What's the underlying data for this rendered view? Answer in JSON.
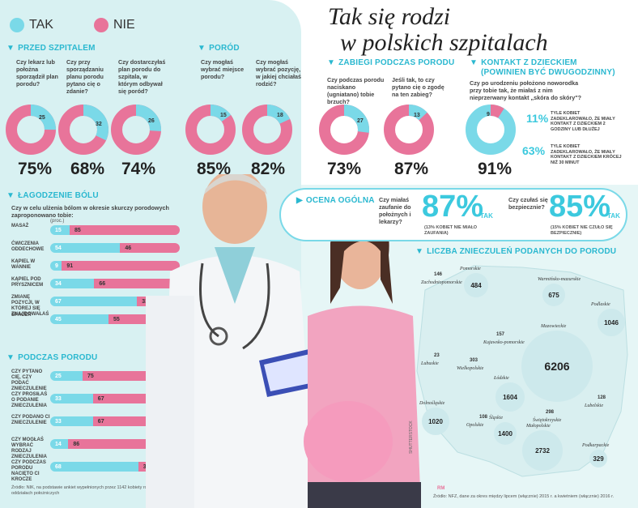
{
  "legend": {
    "tak": "TAK",
    "nie": "NIE",
    "tak_color": "#7ad9e8",
    "nie_color": "#e8749a"
  },
  "title": {
    "line1": "Tak się rodzi",
    "line2": "w polskich szpitalach"
  },
  "przed_szpitalem": {
    "heading": "PRZED SZPITALEM",
    "items": [
      {
        "q": "Czy lekarz lub położna sporządził plan porodu?",
        "tak": "25",
        "pct": "75%"
      },
      {
        "q": "Czy przy sporządzaniu planu porodu pytano cię o zdanie?",
        "tak": "32",
        "pct": "68%"
      },
      {
        "q": "Czy dostarczyłaś plan porodu do szpitala, w którym odbywał się poród?",
        "tak": "26",
        "pct": "74%"
      }
    ]
  },
  "porod": {
    "heading": "PORÓD",
    "items": [
      {
        "q": "Czy mogłaś wybrać miejsce porodu?",
        "tak": "15",
        "pct": "85%"
      },
      {
        "q": "Czy mogłaś wybrać pozycję, w jakiej chciałaś rodzić?",
        "tak": "18",
        "pct": "82%"
      }
    ]
  },
  "zabiegi": {
    "heading": "ZABIEGI PODCZAS PORODU",
    "items": [
      {
        "q": "Czy podczas porodu naciskano (ugniatano) tobie brzuch?",
        "tak": "27",
        "pct": "73%"
      },
      {
        "q": "Jeśli tak, to czy pytano cię o zgodę na ten zabieg?",
        "tak": "13",
        "pct": "87%"
      }
    ]
  },
  "kontakt": {
    "heading": "KONTAKT Z DZIECKIEM",
    "heading2": "(POWINIEN BYĆ DWUGODZINNY)",
    "q": "Czy po urodzeniu położono noworodka przy tobie tak, że miałaś z nim nieprzerwany kontakt „skóra do skóry\"?",
    "nie": "9",
    "pct": "91%",
    "stat1_pct": "11%",
    "stat1_txt": "TYLE KOBIET ZADEKLAROWAŁO, ŻE MIAŁY KONTAKT Z DZIECKIEM 2 GODZINY LUB DŁUŻEJ",
    "stat2_pct": "63%",
    "stat2_txt": "TYLE KOBIET ZADEKLAROWAŁO, ŻE MIAŁY KONTAKT Z DZIECKIEM KRÓCEJ NIŻ 30 MINUT"
  },
  "lagodzenie": {
    "heading": "ŁAGODZENIE BÓLU",
    "q": "Czy w celu ulżenia bólom w okresie skurczy porodowych zaproponowano tobie:",
    "unit": "(proc.)",
    "rows": [
      {
        "label": "MASAŻ",
        "tak": "15",
        "nie": "85"
      },
      {
        "label": "ĆWICZENIA ODDECHOWE",
        "tak": "54",
        "nie": "46"
      },
      {
        "label": "KĄPIEL W WANNIE",
        "tak": "9",
        "nie": "91"
      },
      {
        "label": "KĄPIEL POD PRYSZNICEM",
        "tak": "34",
        "nie": "66"
      },
      {
        "label": "ZMIANĘ POZYCJI, W KTÓREJ SIĘ ZNAJDOWAŁAŚ",
        "tak": "67",
        "nie": "33"
      },
      {
        "label": "SPACER",
        "tak": "45",
        "nie": "55"
      }
    ]
  },
  "podczas": {
    "heading": "PODCZAS PORODU",
    "rows": [
      {
        "label": "CZY PYTANO CIĘ, CZY PODAĆ ZNIECZULENIE",
        "tak": "25",
        "nie": "75"
      },
      {
        "label": "CZY PROSIŁAŚ O PODANIE ZNIECZULENIA",
        "tak": "33",
        "nie": "67"
      },
      {
        "label": "CZY PODANO CI ZNIECZULENIE",
        "tak": "33",
        "nie": "67"
      },
      {
        "label": "CZY MOGŁAŚ WYBRAĆ RODZAJ ZNIECZULENIA",
        "tak": "14",
        "nie": "86"
      },
      {
        "label": "CZY PODCZAS PORODU NACIĘTO CI KROCZE",
        "tak": "68",
        "nie": "32"
      }
    ]
  },
  "zrodlo1": "Źródło: NIK, na podstawie ankiet wypełnionych przez 1142 kobiety rodzące na 24 oddziałach położniczych",
  "ocena": {
    "heading": "OCENA OGÓLNA",
    "q1": "Czy miałaś zaufanie do położnych i lekarzy?",
    "pct1": "87%",
    "tak1": "TAK",
    "note1": "(13% KOBIET NIE MIAŁO ZAUFANIA)",
    "q2": "Czy czułaś się bezpiecznie?",
    "pct2": "85%",
    "tak2": "TAK",
    "note2": "(15% KOBIET NIE CZUŁO SIĘ BEZPIECZNIE)"
  },
  "mapa": {
    "heading": "LICZBA ZNIECZULEŃ PODANYCH DO PORODU",
    "regions": [
      {
        "name": "Zachodniopomorskie",
        "value": "146"
      },
      {
        "name": "Pomorskie",
        "value": "484"
      },
      {
        "name": "Warmińsko-mazurskie",
        "value": "675"
      },
      {
        "name": "Podlaskie",
        "value": "1046"
      },
      {
        "name": "Kujawsko-pomorskie",
        "value": "157"
      },
      {
        "name": "Lubuskie",
        "value": "23"
      },
      {
        "name": "Wielkopolskie",
        "value": "303"
      },
      {
        "name": "Mazowieckie",
        "value": "6206"
      },
      {
        "name": "Łódzkie",
        "value": "1604"
      },
      {
        "name": "Lubelskie",
        "value": "128"
      },
      {
        "name": "Dolnośląskie",
        "value": "1020"
      },
      {
        "name": "Opolskie",
        "value": "108"
      },
      {
        "name": "Świętokrzyskie",
        "value": "298"
      },
      {
        "name": "Śląskie",
        "value": "1400"
      },
      {
        "name": "Małopolskie",
        "value": "2732"
      },
      {
        "name": "Podkarpackie",
        "value": "329"
      }
    ],
    "zrodlo": "Źródło: NFZ, dane za okres między lipcem (włącznie) 2015 r. a kwietniem (włącznie) 2016 r.",
    "credit": "SHUTTERSTOCK",
    "logo": "RM"
  }
}
